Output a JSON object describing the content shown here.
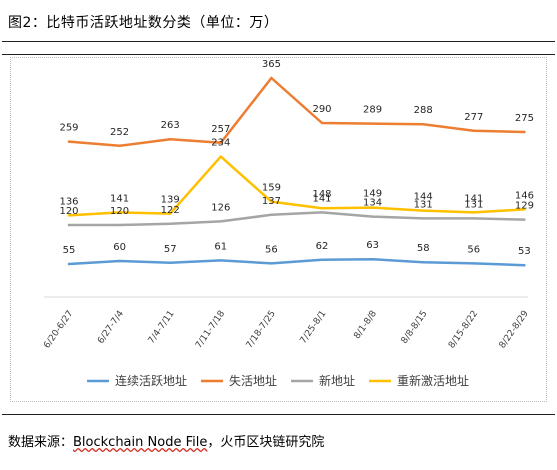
{
  "figure": {
    "title": "图2：比特币活跃地址数分类（单位：万）",
    "source_prefix": "数据来源：",
    "source_link": "Blockchain Node File",
    "source_suffix": "，火币区块链研究院"
  },
  "chart_data": {
    "type": "line",
    "title": "图2：比特币活跃地址数分类（单位：万）",
    "categories": [
      "6/20-6/27",
      "6/27-7/4",
      "7/4-7/11",
      "7/11-7/18",
      "7/18-7/25",
      "7/25-8/1",
      "8/1-8/8",
      "8/8-8/15",
      "8/15-8/22",
      "8/22-8/29"
    ],
    "series": [
      {
        "name": "连续活跃地址",
        "color": "#5b9bd5",
        "values": [
          55,
          60,
          57,
          61,
          56,
          62,
          63,
          58,
          56,
          53
        ]
      },
      {
        "name": "失活地址",
        "color": "#ed7d31",
        "values": [
          259,
          252,
          263,
          257,
          365,
          290,
          289,
          288,
          277,
          275
        ]
      },
      {
        "name": "新地址",
        "color": "#a5a5a5",
        "values": [
          120,
          120,
          122,
          126,
          137,
          141,
          134,
          131,
          131,
          129
        ]
      },
      {
        "name": "重新激活地址",
        "color": "#ffc000",
        "values": [
          136,
          141,
          139,
          234,
          159,
          148,
          149,
          144,
          141,
          146
        ]
      }
    ],
    "ylim": [
      0,
      400
    ],
    "grid": false,
    "legend_position": "bottom",
    "data_labels": true
  }
}
